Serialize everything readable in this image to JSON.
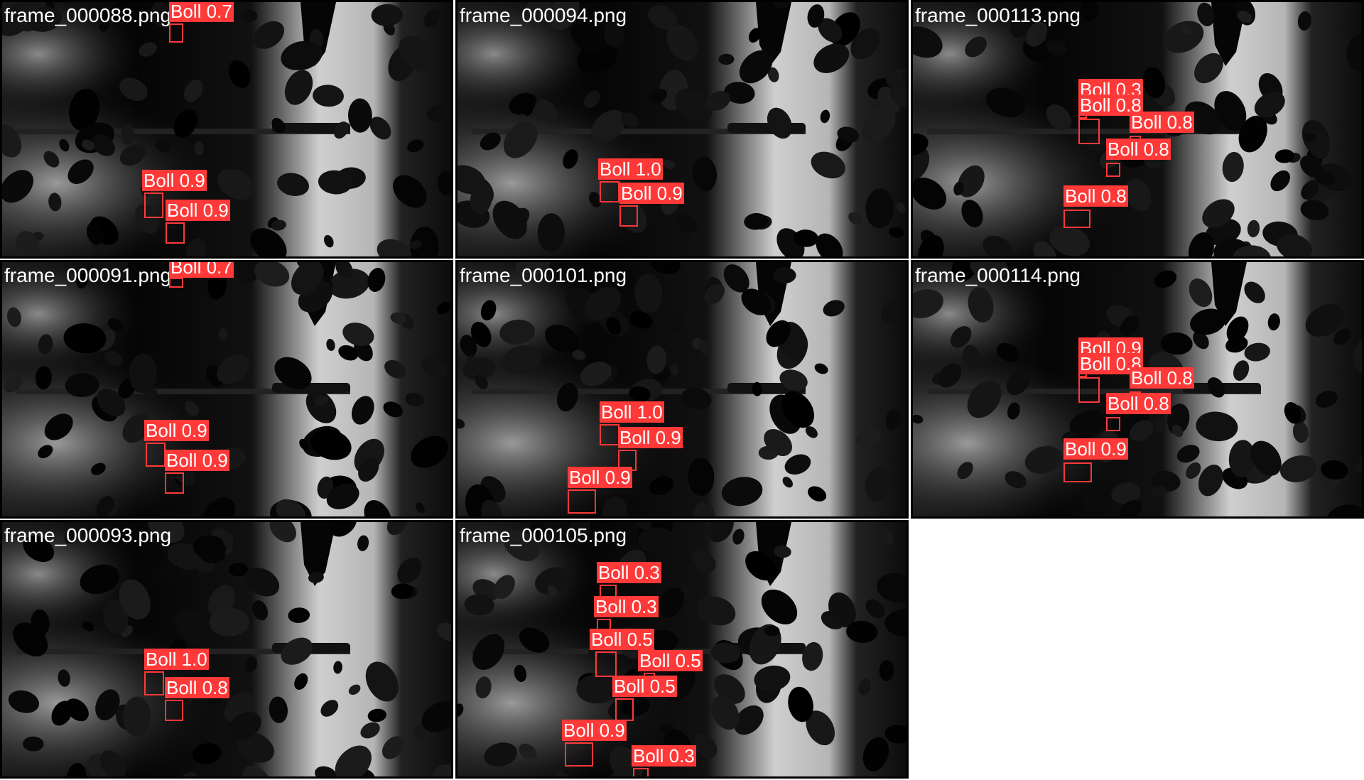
{
  "colors": {
    "box": "#ff3838",
    "label_text": "#ffffff",
    "background": "#ffffff"
  },
  "tiles": [
    {
      "filename": "frame_000088.png",
      "detections": [
        {
          "label": "Boll 0.7",
          "class": "Boll",
          "confidence": 0.7
        },
        {
          "label": "Boll 0.9",
          "class": "Boll",
          "confidence": 0.9
        },
        {
          "label": "Boll 0.9",
          "class": "Boll",
          "confidence": 0.9
        }
      ]
    },
    {
      "filename": "frame_000094.png",
      "detections": [
        {
          "label": "Boll 1.0",
          "class": "Boll",
          "confidence": 1.0
        },
        {
          "label": "Boll 0.9",
          "class": "Boll",
          "confidence": 0.9
        }
      ]
    },
    {
      "filename": "frame_000113.png",
      "detections": [
        {
          "label": "Boll 0.3",
          "class": "Boll",
          "confidence": 0.3
        },
        {
          "label": "Boll 0.8",
          "class": "Boll",
          "confidence": 0.8
        },
        {
          "label": "Boll 0.8",
          "class": "Boll",
          "confidence": 0.8
        },
        {
          "label": "Boll 0.8",
          "class": "Boll",
          "confidence": 0.8
        },
        {
          "label": "Boll 0.8",
          "class": "Boll",
          "confidence": 0.8
        }
      ]
    },
    {
      "filename": "frame_000091.png",
      "detections": [
        {
          "label": "Boll 0.7",
          "class": "Boll",
          "confidence": 0.7
        },
        {
          "label": "Boll 0.9",
          "class": "Boll",
          "confidence": 0.9
        },
        {
          "label": "Boll 0.9",
          "class": "Boll",
          "confidence": 0.9
        }
      ]
    },
    {
      "filename": "frame_000101.png",
      "detections": [
        {
          "label": "Boll 1.0",
          "class": "Boll",
          "confidence": 1.0
        },
        {
          "label": "Boll 0.9",
          "class": "Boll",
          "confidence": 0.9
        },
        {
          "label": "Boll 0.9",
          "class": "Boll",
          "confidence": 0.9
        }
      ]
    },
    {
      "filename": "frame_000114.png",
      "detections": [
        {
          "label": "Boll 0.9",
          "class": "Boll",
          "confidence": 0.9
        },
        {
          "label": "Boll 0.8",
          "class": "Boll",
          "confidence": 0.8
        },
        {
          "label": "Boll 0.8",
          "class": "Boll",
          "confidence": 0.8
        },
        {
          "label": "Boll 0.8",
          "class": "Boll",
          "confidence": 0.8
        },
        {
          "label": "Boll 0.9",
          "class": "Boll",
          "confidence": 0.9
        }
      ]
    },
    {
      "filename": "frame_000093.png",
      "detections": [
        {
          "label": "Boll 1.0",
          "class": "Boll",
          "confidence": 1.0
        },
        {
          "label": "Boll 0.8",
          "class": "Boll",
          "confidence": 0.8
        }
      ]
    },
    {
      "filename": "frame_000105.png",
      "detections": [
        {
          "label": "Boll 0.3",
          "class": "Boll",
          "confidence": 0.3
        },
        {
          "label": "Boll 0.3",
          "class": "Boll",
          "confidence": 0.3
        },
        {
          "label": "Boll 0.5",
          "class": "Boll",
          "confidence": 0.5
        },
        {
          "label": "Boll 0.5",
          "class": "Boll",
          "confidence": 0.5
        },
        {
          "label": "Boll 0.5",
          "class": "Boll",
          "confidence": 0.5
        },
        {
          "label": "Boll 0.9",
          "class": "Boll",
          "confidence": 0.9
        },
        {
          "label": "Boll 0.3",
          "class": "Boll",
          "confidence": 0.3
        }
      ]
    }
  ]
}
